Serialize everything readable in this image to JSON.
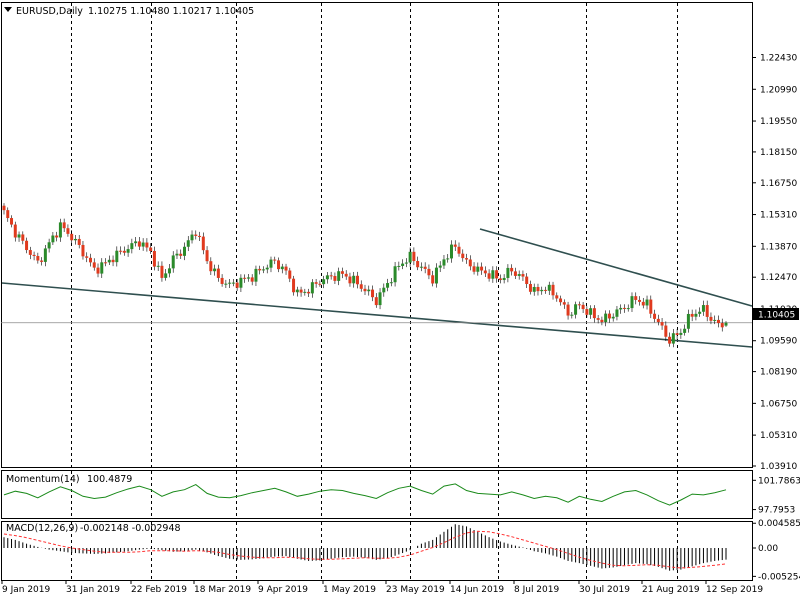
{
  "header": {
    "symbol": "EURUSD,Daily",
    "ohlc": "1.10275 1.10480 1.10217 1.10405"
  },
  "colors": {
    "bull": "#2a8a2a",
    "bear": "#e03a1e",
    "wick": "#000000",
    "trendline": "#2f4f4f",
    "momentum": "#1a8a1a",
    "macd_signal": "#ff3030",
    "macd_hist": "#000000",
    "grid": "#000000"
  },
  "chart_data": [
    {
      "type": "candlestick",
      "title": "EURUSD,Daily",
      "y_ticks": [
        "1.22430",
        "1.20990",
        "1.19550",
        "1.18150",
        "1.16750",
        "1.15310",
        "1.13870",
        "1.12470",
        "1.11030",
        "1.09590",
        "1.08190",
        "1.06750",
        "1.05310",
        "1.03910"
      ],
      "ylim": [
        1.0391,
        1.2336
      ],
      "last_price": "1.10405",
      "x_ticks": [
        "9 Jan 2019",
        "31 Jan 2019",
        "22 Feb 2019",
        "18 Mar 2019",
        "9 Apr 2019",
        "1 May 2019",
        "23 May 2019",
        "14 Jun 2019",
        "8 Jul 2019",
        "30 Jul 2019",
        "21 Aug 2019",
        "12 Sep 2019"
      ],
      "close_path": [
        [
          0,
          1.154
        ],
        [
          3,
          1.145
        ],
        [
          6,
          1.138
        ],
        [
          9,
          1.131
        ],
        [
          12,
          1.14
        ],
        [
          15,
          1.148
        ],
        [
          18,
          1.143
        ],
        [
          21,
          1.136
        ],
        [
          24,
          1.128
        ],
        [
          27,
          1.131
        ],
        [
          30,
          1.135
        ],
        [
          33,
          1.138
        ],
        [
          36,
          1.141
        ],
        [
          39,
          1.136
        ],
        [
          42,
          1.124
        ],
        [
          45,
          1.133
        ],
        [
          48,
          1.138
        ],
        [
          51,
          1.146
        ],
        [
          54,
          1.132
        ],
        [
          57,
          1.124
        ],
        [
          60,
          1.121
        ],
        [
          63,
          1.123
        ],
        [
          66,
          1.125
        ],
        [
          69,
          1.129
        ],
        [
          72,
          1.132
        ],
        [
          75,
          1.127
        ],
        [
          78,
          1.117
        ],
        [
          81,
          1.119
        ],
        [
          84,
          1.123
        ],
        [
          87,
          1.125
        ],
        [
          90,
          1.126
        ],
        [
          93,
          1.123
        ],
        [
          96,
          1.119
        ],
        [
          99,
          1.114
        ],
        [
          102,
          1.122
        ],
        [
          105,
          1.13
        ],
        [
          108,
          1.134
        ],
        [
          111,
          1.129
        ],
        [
          114,
          1.124
        ],
        [
          117,
          1.133
        ],
        [
          120,
          1.139
        ],
        [
          123,
          1.131
        ],
        [
          126,
          1.128
        ],
        [
          129,
          1.126
        ],
        [
          132,
          1.124
        ],
        [
          135,
          1.128
        ],
        [
          138,
          1.124
        ],
        [
          141,
          1.118
        ],
        [
          144,
          1.12
        ],
        [
          147,
          1.116
        ],
        [
          150,
          1.108
        ],
        [
          153,
          1.112
        ],
        [
          156,
          1.108
        ],
        [
          159,
          1.105
        ],
        [
          162,
          1.108
        ],
        [
          165,
          1.111
        ],
        [
          168,
          1.115
        ],
        [
          171,
          1.112
        ],
        [
          174,
          1.104
        ],
        [
          177,
          1.096
        ],
        [
          180,
          1.1
        ],
        [
          183,
          1.108
        ],
        [
          186,
          1.11
        ],
        [
          189,
          1.104
        ],
        [
          191,
          1.1028
        ],
        [
          192,
          1.10405
        ]
      ],
      "annotations": [
        "upper trendline from 17 Jun 2019 high",
        "lower support trendline",
        "horizontal line at last price"
      ]
    },
    {
      "type": "line",
      "title": "Momentum(14)",
      "value_label": "100.4879",
      "y_ticks": [
        "101.7863",
        "97.7953"
      ],
      "ylim": [
        97.6,
        102.1
      ],
      "series": [
        {
          "name": "Momentum(14)",
          "values": [
            99.8,
            100.3,
            100.0,
            99.4,
            100.2,
            100.9,
            100.4,
            99.6,
            99.3,
            99.5,
            100.1,
            100.6,
            101.0,
            100.5,
            99.6,
            100.2,
            100.5,
            101.2,
            100.0,
            99.5,
            99.4,
            99.7,
            100.1,
            100.4,
            100.7,
            100.2,
            99.6,
            99.9,
            100.3,
            100.5,
            100.4,
            100.0,
            99.7,
            99.3,
            100.1,
            100.7,
            101.0,
            100.4,
            99.9,
            101.0,
            101.3,
            100.4,
            100.0,
            99.9,
            99.8,
            100.2,
            99.8,
            99.3,
            99.6,
            99.4,
            98.8,
            99.6,
            99.2,
            98.9,
            99.6,
            100.2,
            100.4,
            99.8,
            99.0,
            98.4,
            99.1,
            99.9,
            99.8,
            100.1,
            100.4879
          ]
        }
      ]
    },
    {
      "type": "bar+line",
      "title": "MACD(12,26,9)",
      "values_label": "-0.002148 -0.002948",
      "y_ticks": [
        "0.004585",
        "0.00",
        "-0.005254"
      ],
      "ylim": [
        -0.0058,
        0.005
      ],
      "series": [
        {
          "name": "MACD(12,26,9)",
          "values": [
            0.002,
            0.0015,
            0.0008,
            0.0002,
            -0.0003,
            -0.0006,
            -0.0009,
            -0.001,
            -0.0011,
            -0.001,
            -0.0008,
            -0.0006,
            -0.0003,
            -0.0001,
            -0.0004,
            -0.0007,
            -0.0006,
            -0.0003,
            -0.0008,
            -0.0015,
            -0.002,
            -0.0022,
            -0.0021,
            -0.0019,
            -0.0016,
            -0.0015,
            -0.002,
            -0.0024,
            -0.0023,
            -0.002,
            -0.0017,
            -0.0016,
            -0.0018,
            -0.0022,
            -0.0019,
            -0.0012,
            -0.0004,
            0.0008,
            0.0015,
            0.003,
            0.0044,
            0.004,
            0.003,
            0.002,
            0.0012,
            0.0006,
            0.0001,
            -0.0006,
            -0.001,
            -0.0016,
            -0.0024,
            -0.0028,
            -0.0033,
            -0.0038,
            -0.0036,
            -0.0032,
            -0.0028,
            -0.003,
            -0.0035,
            -0.0042,
            -0.004,
            -0.0034,
            -0.0028,
            -0.0024,
            -0.002148
          ]
        },
        {
          "name": "Signal",
          "values": [
            0.0026,
            0.0023,
            0.0019,
            0.0014,
            0.0009,
            0.0004,
            0.0,
            -0.0003,
            -0.0006,
            -0.0008,
            -0.0008,
            -0.0008,
            -0.0007,
            -0.0005,
            -0.0005,
            -0.0005,
            -0.0006,
            -0.0005,
            -0.0006,
            -0.0008,
            -0.0012,
            -0.0015,
            -0.0017,
            -0.0018,
            -0.0018,
            -0.0017,
            -0.0018,
            -0.002,
            -0.0021,
            -0.0021,
            -0.002,
            -0.0019,
            -0.0018,
            -0.0019,
            -0.0019,
            -0.0017,
            -0.0013,
            -0.0006,
            0.0001,
            0.001,
            0.002,
            0.0028,
            0.0031,
            0.003,
            0.0026,
            0.0021,
            0.0015,
            0.0009,
            0.0003,
            -0.0003,
            -0.001,
            -0.0017,
            -0.0023,
            -0.0028,
            -0.0032,
            -0.0033,
            -0.0032,
            -0.0031,
            -0.0032,
            -0.0035,
            -0.0037,
            -0.0036,
            -0.0034,
            -0.0032,
            -0.002948
          ]
        }
      ]
    }
  ]
}
